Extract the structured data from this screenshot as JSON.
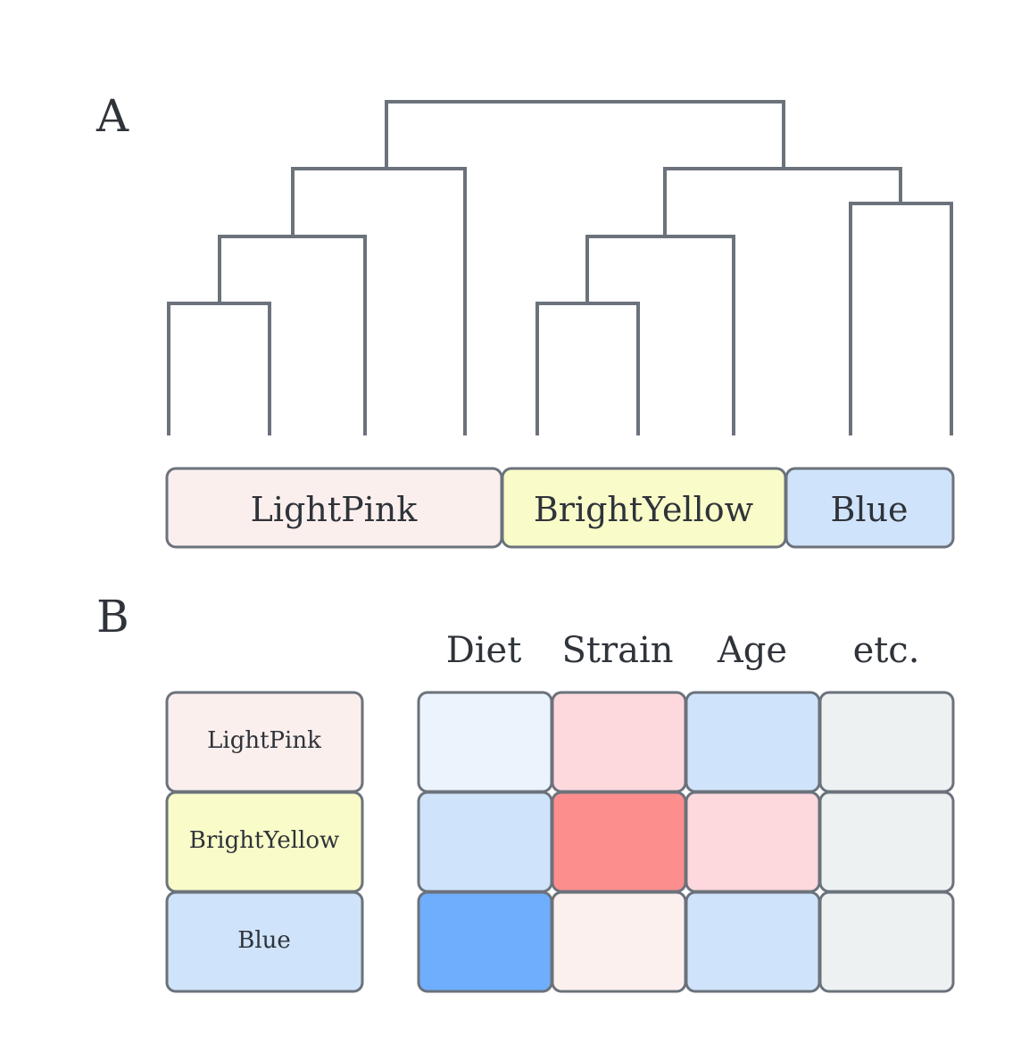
{
  "panels": {
    "a_label": "A",
    "b_label": "B"
  },
  "clusters": [
    {
      "name": "LightPink",
      "color": "#fbefed"
    },
    {
      "name": "BrightYellow",
      "color": "#f9fbc8"
    },
    {
      "name": "Blue",
      "color": "#cfe3fa"
    }
  ],
  "heatmap": {
    "columns": [
      "Diet",
      "Strain",
      "Age",
      "etc."
    ],
    "rows": [
      "LightPink",
      "BrightYellow",
      "Blue"
    ],
    "row_colors": [
      "#fbefed",
      "#f9fbc8",
      "#cfe3fa"
    ],
    "cell_colors": [
      [
        "#ebf3fc",
        "#fdd8dc",
        "#cfe3fa",
        "#eef1f2"
      ],
      [
        "#cfe3fa",
        "#fd8e8e",
        "#fdd8dc",
        "#eef1f2"
      ],
      [
        "#6eaefc",
        "#fcf0ee",
        "#cfe3fa",
        "#eef1f2"
      ]
    ]
  },
  "style": {
    "line_color": "#6b727b",
    "border_color": "#6b727b"
  }
}
